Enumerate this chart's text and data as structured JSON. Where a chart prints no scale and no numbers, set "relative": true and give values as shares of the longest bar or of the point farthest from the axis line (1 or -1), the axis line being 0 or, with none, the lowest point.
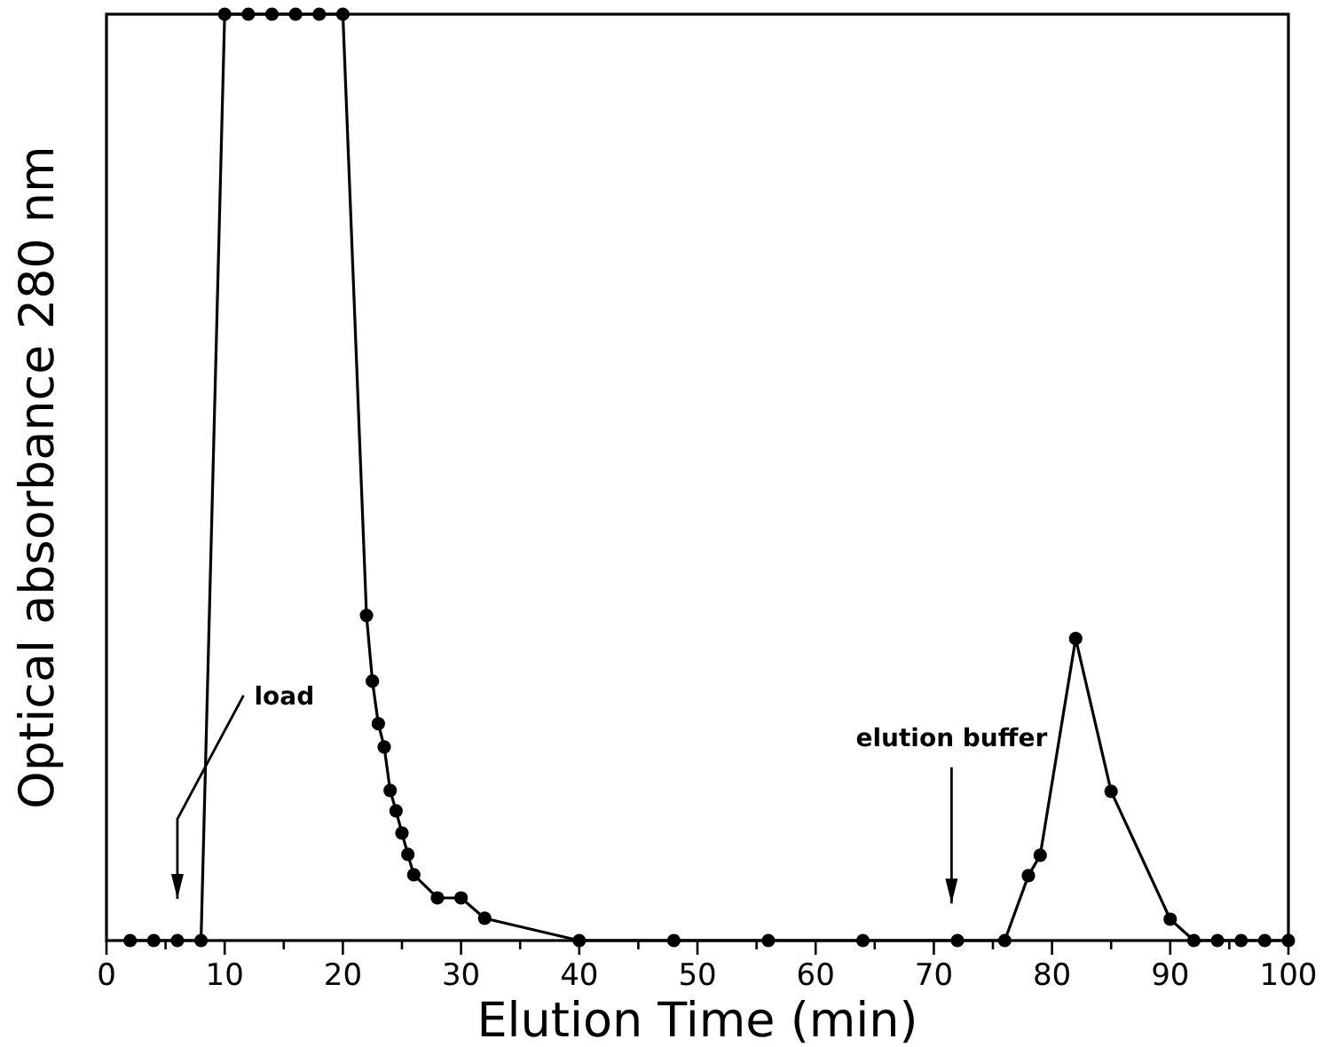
{
  "chart_data": {
    "type": "line",
    "relative": true,
    "xlabel": "Elution Time  (min)",
    "ylabel": "Optical  absorbance  280  nm",
    "xlim": [
      0,
      100
    ],
    "xticks": [
      0,
      {
        "value": 5,
        "label": null
      },
      10,
      {
        "value": 15,
        "label": null
      },
      20,
      {
        "value": 25,
        "label": null
      },
      30,
      {
        "value": 35,
        "label": null
      },
      40,
      {
        "value": 45,
        "label": null
      },
      50,
      {
        "value": 55,
        "label": null
      },
      60,
      {
        "value": 65,
        "label": null
      },
      70,
      {
        "value": 75,
        "label": null
      },
      80,
      {
        "value": 85,
        "label": null
      },
      90,
      {
        "value": 95,
        "label": null
      },
      100
    ],
    "marker": "circle",
    "line_style": "solid",
    "grid": false,
    "series": [
      {
        "color": "#000000",
        "x": [
          2,
          4,
          6,
          8,
          10,
          12,
          14,
          16,
          18,
          20,
          22,
          22.5,
          23,
          23.5,
          24,
          24.5,
          25,
          25.5,
          26,
          28,
          30,
          32,
          40,
          48,
          56,
          64,
          72,
          76,
          78,
          79,
          82,
          85,
          90,
          92,
          94,
          96,
          98,
          100
        ],
        "values": [
          0,
          0,
          0,
          0,
          1,
          1,
          1,
          1,
          1,
          1,
          0.351,
          0.28,
          0.234,
          0.209,
          0.162,
          0.14,
          0.116,
          0.093,
          0.071,
          0.046,
          0.046,
          0.024,
          0,
          0,
          0,
          0,
          0,
          0,
          0.07,
          0.092,
          0.326,
          0.161,
          0.023,
          0,
          0,
          0,
          0,
          0
        ]
      }
    ],
    "annotations": [
      "load",
      "elution buffer"
    ]
  }
}
